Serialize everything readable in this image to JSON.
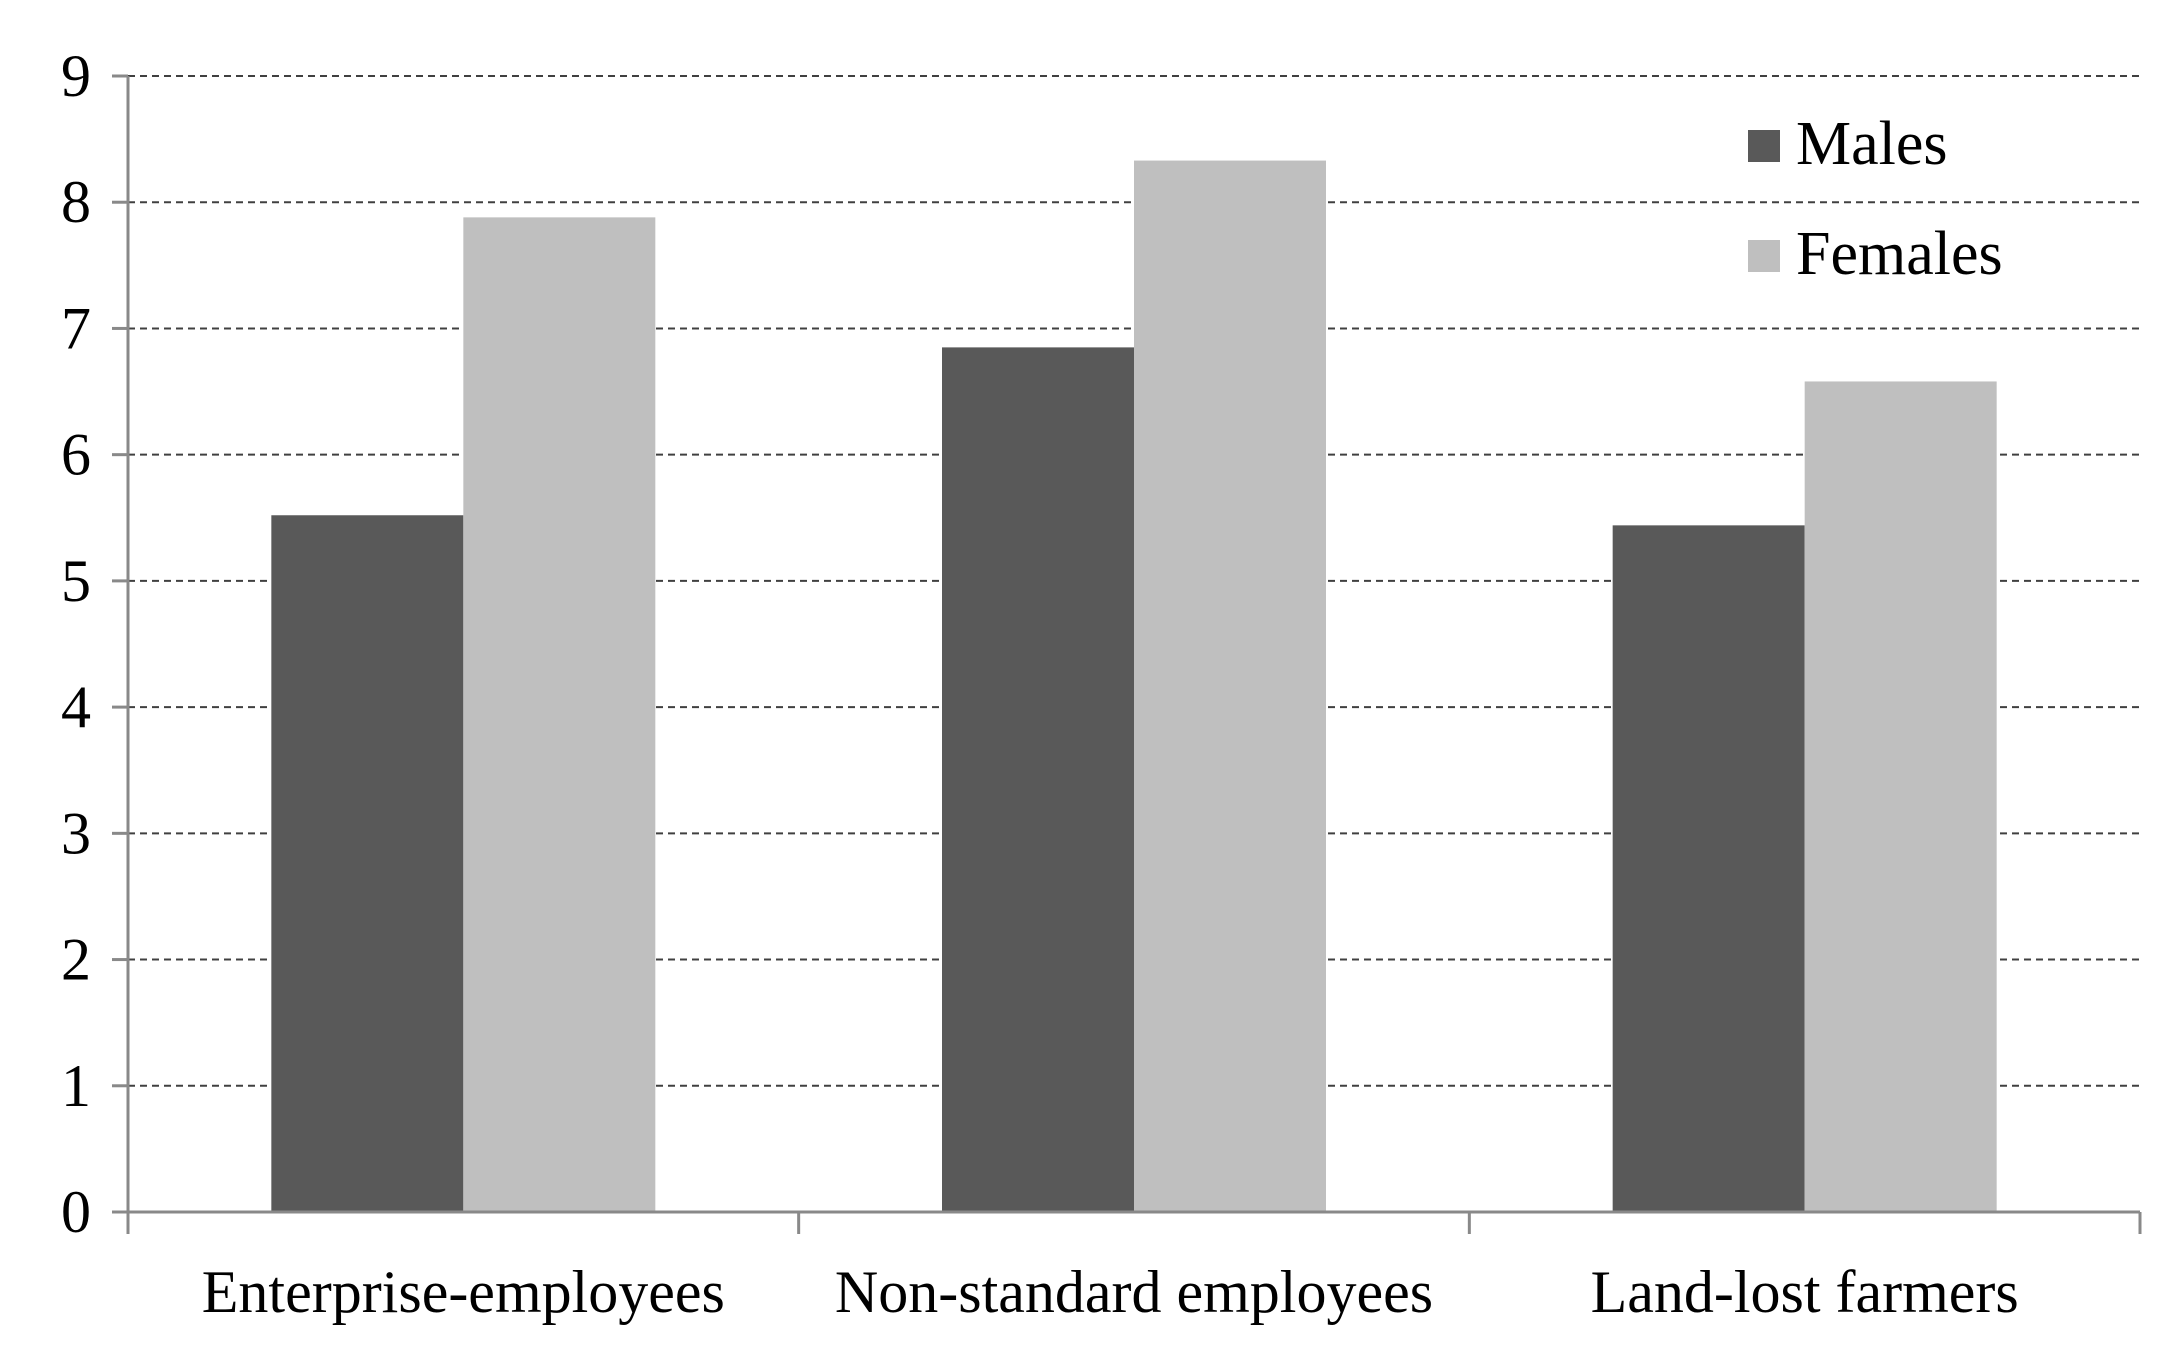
{
  "chart_data": {
    "type": "bar",
    "title": "",
    "xlabel": "",
    "ylabel": "",
    "categories": [
      "Enterprise-employees",
      "Non-standard employees",
      "Land-lost farmers"
    ],
    "series": [
      {
        "name": "Males",
        "values": [
          5.52,
          6.85,
          5.44
        ],
        "color": "#595959"
      },
      {
        "name": "Females",
        "values": [
          7.88,
          8.33,
          6.58
        ],
        "color": "#bfbfbf"
      }
    ],
    "ylim": [
      0,
      9
    ],
    "yticks": [
      0,
      1,
      2,
      3,
      4,
      5,
      6,
      7,
      8,
      9
    ],
    "grid": true,
    "grid_style": "dashed",
    "legend_position": "top-right",
    "axis_color": "#898989",
    "grid_color": "#404040"
  }
}
